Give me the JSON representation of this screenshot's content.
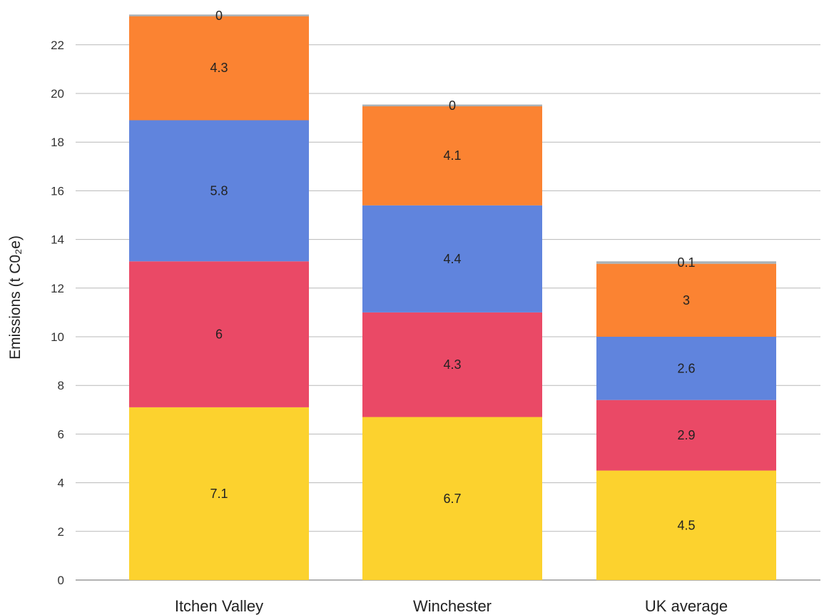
{
  "chart_data": {
    "type": "bar",
    "stacked": true,
    "title": "",
    "xlabel": "",
    "ylabel": "Emissions (t C0₂e)",
    "ylim": [
      0,
      23.3
    ],
    "yticks": [
      0,
      2,
      4,
      6,
      8,
      10,
      12,
      14,
      16,
      18,
      20,
      22
    ],
    "grid": true,
    "legend": "none",
    "categories": [
      "Itchen Valley",
      "Winchester",
      "UK average"
    ],
    "series": [
      {
        "color": "#fcd22e",
        "values": [
          7.1,
          6.7,
          4.5
        ],
        "labels": [
          "7.1",
          "6.7",
          "4.5"
        ]
      },
      {
        "color": "#ea4966",
        "values": [
          6,
          4.3,
          2.9
        ],
        "labels": [
          "6",
          "4.3",
          "2.9"
        ]
      },
      {
        "color": "#6084dd",
        "values": [
          5.8,
          4.4,
          2.6
        ],
        "labels": [
          "5.8",
          "4.4",
          "2.6"
        ]
      },
      {
        "color": "#fb8332",
        "values": [
          4.3,
          4.1,
          3
        ],
        "labels": [
          "4.3",
          "4.1",
          "3"
        ]
      },
      {
        "color": "#a9b1b6",
        "values": [
          0,
          0,
          0.1
        ],
        "labels": [
          "0",
          "0",
          "0.1"
        ]
      }
    ]
  }
}
